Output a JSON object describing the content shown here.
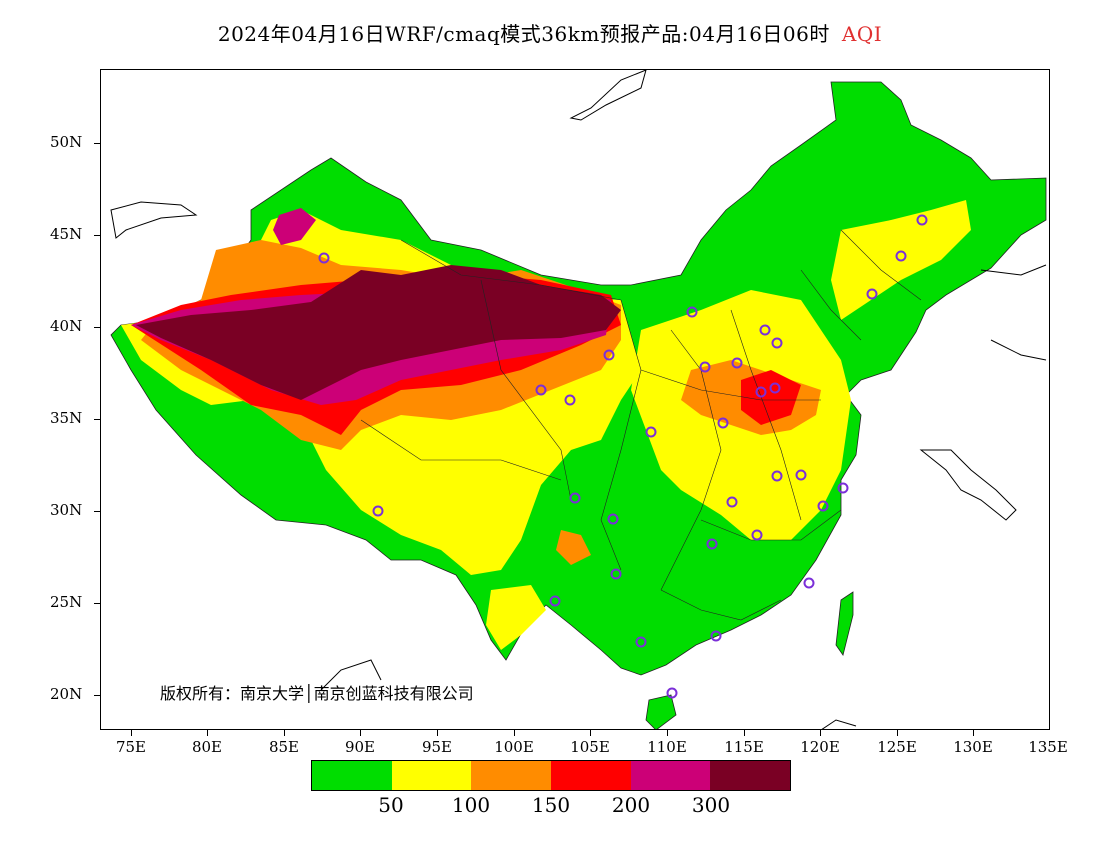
{
  "header": {
    "title": "2024年04月16日WRF/cmaq模式36km预报产品:04月16日06时",
    "variable": "AQI"
  },
  "map": {
    "lat_ticks": [
      "50N",
      "45N",
      "40N",
      "35N",
      "30N",
      "25N",
      "20N"
    ],
    "lon_ticks": [
      "75E",
      "80E",
      "85E",
      "90E",
      "95E",
      "100E",
      "105E",
      "110E",
      "115E",
      "120E",
      "125E",
      "130E",
      "135E"
    ],
    "extent": {
      "lon_min": 73,
      "lon_max": 135,
      "lat_min": 18,
      "lat_max": 54
    },
    "copyright": "版权所有：南京大学│南京创蓝科技有限公司",
    "station_marker_color": "#7b2fd8"
  },
  "legend": {
    "colors": [
      "#00dd00",
      "#ffff00",
      "#ff8c00",
      "#ff0000",
      "#cc0077",
      "#7a0024"
    ],
    "values": [
      "50",
      "100",
      "150",
      "200",
      "300"
    ]
  }
}
